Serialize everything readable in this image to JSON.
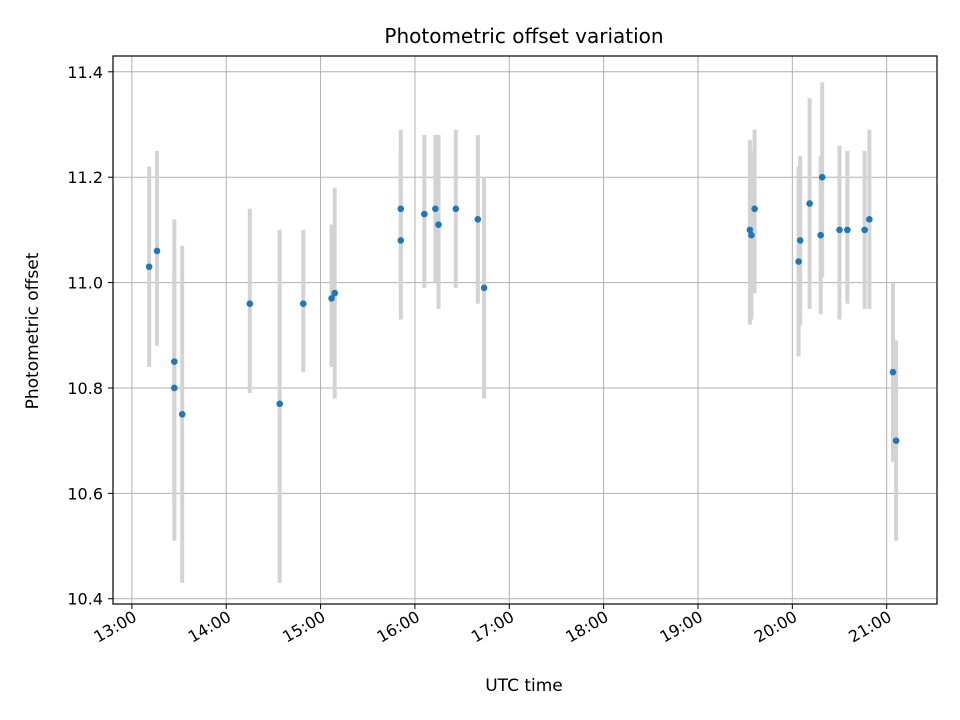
{
  "chart_data": {
    "type": "scatter",
    "title": "Photometric offset variation",
    "xlabel": "UTC time",
    "ylabel": "Photometric offset",
    "x_unit": "UTC hour",
    "xlim": [
      "12:48",
      "21:32"
    ],
    "ylim": [
      10.39,
      11.43
    ],
    "x_ticks": [
      "13:00",
      "14:00",
      "15:00",
      "16:00",
      "17:00",
      "18:00",
      "19:00",
      "20:00",
      "21:00"
    ],
    "y_ticks": [
      "10.4",
      "10.6",
      "10.8",
      "11.0",
      "11.2",
      "11.4"
    ],
    "grid": true,
    "legend": "none",
    "marker_color": "#1f77b4",
    "errorbar_color": "#d3d3d3",
    "points": [
      {
        "x": "13:11",
        "y": 11.03,
        "err": [
          10.84,
          11.22
        ]
      },
      {
        "x": "13:16",
        "y": 11.06,
        "err": [
          10.88,
          11.25
        ]
      },
      {
        "x": "13:27",
        "y": 10.85,
        "err": [
          10.51,
          11.12
        ]
      },
      {
        "x": "13:27",
        "y": 10.8,
        "err": [
          10.58,
          11.02
        ]
      },
      {
        "x": "13:32",
        "y": 10.75,
        "err": [
          10.43,
          11.07
        ]
      },
      {
        "x": "14:15",
        "y": 10.96,
        "err": [
          10.79,
          11.14
        ]
      },
      {
        "x": "14:34",
        "y": 10.77,
        "err": [
          10.43,
          11.1
        ]
      },
      {
        "x": "14:49",
        "y": 10.96,
        "err": [
          10.83,
          11.1
        ]
      },
      {
        "x": "15:07",
        "y": 10.97,
        "err": [
          10.84,
          11.11
        ]
      },
      {
        "x": "15:09",
        "y": 10.98,
        "err": [
          10.78,
          11.18
        ]
      },
      {
        "x": "15:51",
        "y": 11.14,
        "err": [
          11.0,
          11.29
        ]
      },
      {
        "x": "15:51",
        "y": 11.08,
        "err": [
          10.93,
          11.24
        ]
      },
      {
        "x": "16:06",
        "y": 11.13,
        "err": [
          10.99,
          11.28
        ]
      },
      {
        "x": "16:13",
        "y": 11.14,
        "err": [
          11.0,
          11.28
        ]
      },
      {
        "x": "16:15",
        "y": 11.11,
        "err": [
          10.95,
          11.28
        ]
      },
      {
        "x": "16:26",
        "y": 11.14,
        "err": [
          10.99,
          11.29
        ]
      },
      {
        "x": "16:40",
        "y": 11.12,
        "err": [
          10.96,
          11.28
        ]
      },
      {
        "x": "16:44",
        "y": 10.99,
        "err": [
          10.78,
          11.2
        ]
      },
      {
        "x": "19:33",
        "y": 11.1,
        "err": [
          10.92,
          11.27
        ]
      },
      {
        "x": "19:34",
        "y": 11.09,
        "err": [
          10.93,
          11.25
        ]
      },
      {
        "x": "19:36",
        "y": 11.14,
        "err": [
          10.98,
          11.29
        ]
      },
      {
        "x": "20:04",
        "y": 11.04,
        "err": [
          10.86,
          11.22
        ]
      },
      {
        "x": "20:05",
        "y": 11.08,
        "err": [
          10.92,
          11.24
        ]
      },
      {
        "x": "20:11",
        "y": 11.15,
        "err": [
          10.95,
          11.35
        ]
      },
      {
        "x": "20:18",
        "y": 11.09,
        "err": [
          10.94,
          11.24
        ]
      },
      {
        "x": "20:19",
        "y": 11.2,
        "err": [
          11.01,
          11.38
        ]
      },
      {
        "x": "20:30",
        "y": 11.1,
        "err": [
          10.93,
          11.26
        ]
      },
      {
        "x": "20:35",
        "y": 11.1,
        "err": [
          10.96,
          11.25
        ]
      },
      {
        "x": "20:46",
        "y": 11.1,
        "err": [
          10.95,
          11.25
        ]
      },
      {
        "x": "20:49",
        "y": 11.12,
        "err": [
          10.95,
          11.29
        ]
      },
      {
        "x": "21:04",
        "y": 10.83,
        "err": [
          10.66,
          11.0
        ]
      },
      {
        "x": "21:06",
        "y": 10.7,
        "err": [
          10.51,
          10.89
        ]
      }
    ]
  }
}
